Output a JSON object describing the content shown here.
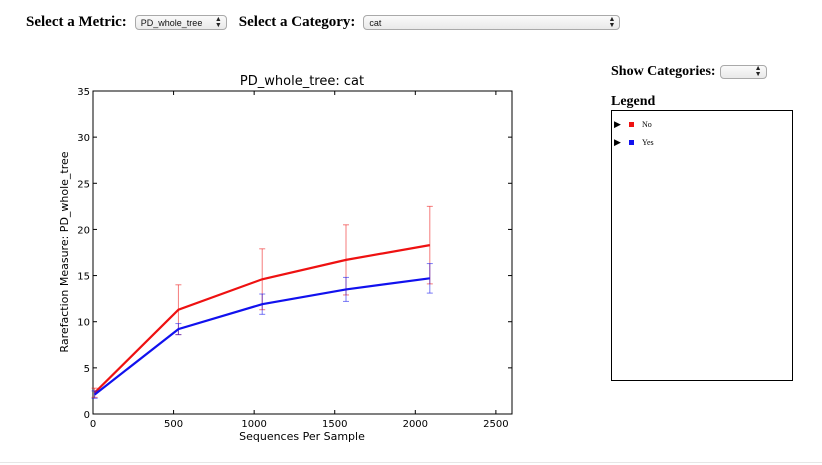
{
  "toolbar": {
    "metric_label": "Select a Metric:",
    "metric_value": "PD_whole_tree",
    "category_label": "Select a Category:",
    "category_value": "cat"
  },
  "side": {
    "show_label": "Show Categories:",
    "legend_title": "Legend",
    "items": [
      {
        "label": "No",
        "color": "#ee1111"
      },
      {
        "label": "Yes",
        "color": "#1111ee"
      }
    ]
  },
  "chart_data": {
    "type": "line",
    "title": "PD_whole_tree: cat",
    "xlabel": "Sequences Per Sample",
    "ylabel": "Rarefaction Measure: PD_whole_tree",
    "xlim": [
      0,
      2600
    ],
    "ylim": [
      0,
      35
    ],
    "xticks": [
      0,
      500,
      1000,
      1500,
      2000,
      2500
    ],
    "yticks": [
      0,
      5,
      10,
      15,
      20,
      25,
      30,
      35
    ],
    "grid": false,
    "series": [
      {
        "name": "No",
        "color": "#ee1111",
        "x": [
          10,
          530,
          1050,
          1570,
          2090
        ],
        "y": [
          2.3,
          11.3,
          14.6,
          16.7,
          18.3
        ],
        "err": [
          0.5,
          2.7,
          3.3,
          3.8,
          4.2
        ]
      },
      {
        "name": "Yes",
        "color": "#1111ee",
        "x": [
          10,
          530,
          1050,
          1570,
          2090
        ],
        "y": [
          2.1,
          9.2,
          11.9,
          13.5,
          14.7
        ],
        "err": [
          0.4,
          0.6,
          1.1,
          1.3,
          1.6
        ]
      }
    ]
  }
}
